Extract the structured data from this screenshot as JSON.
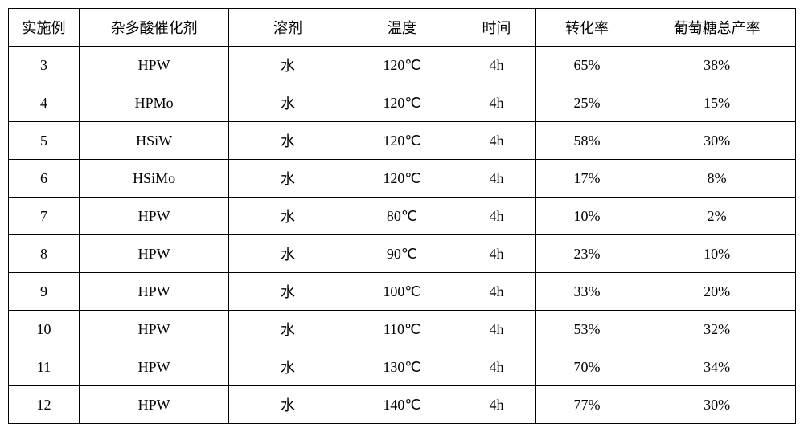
{
  "table": {
    "columns": [
      {
        "label": "实施例",
        "width": "9%"
      },
      {
        "label": "杂多酸催化剂",
        "width": "19%"
      },
      {
        "label": "溶剂",
        "width": "15%"
      },
      {
        "label": "温度",
        "width": "14%"
      },
      {
        "label": "时间",
        "width": "10%"
      },
      {
        "label": "转化率",
        "width": "13%"
      },
      {
        "label": "葡萄糖总产率",
        "width": "20%"
      }
    ],
    "rows": [
      [
        "3",
        "HPW",
        "水",
        "120℃",
        "4h",
        "65%",
        "38%"
      ],
      [
        "4",
        "HPMo",
        "水",
        "120℃",
        "4h",
        "25%",
        "15%"
      ],
      [
        "5",
        "HSiW",
        "水",
        "120℃",
        "4h",
        "58%",
        "30%"
      ],
      [
        "6",
        "HSiMo",
        "水",
        "120℃",
        "4h",
        "17%",
        "8%"
      ],
      [
        "7",
        "HPW",
        "水",
        "80℃",
        "4h",
        "10%",
        "2%"
      ],
      [
        "8",
        "HPW",
        "水",
        "90℃",
        "4h",
        "23%",
        "10%"
      ],
      [
        "9",
        "HPW",
        "水",
        "100℃",
        "4h",
        "33%",
        "20%"
      ],
      [
        "10",
        "HPW",
        "水",
        "110℃",
        "4h",
        "53%",
        "32%"
      ],
      [
        "11",
        "HPW",
        "水",
        "130℃",
        "4h",
        "70%",
        "34%"
      ],
      [
        "12",
        "HPW",
        "水",
        "140℃",
        "4h",
        "77%",
        "30%"
      ]
    ],
    "border_color": "#000000",
    "background_color": "#ffffff",
    "text_color": "#000000",
    "font_size": 18,
    "cell_padding": "10px 4px"
  }
}
